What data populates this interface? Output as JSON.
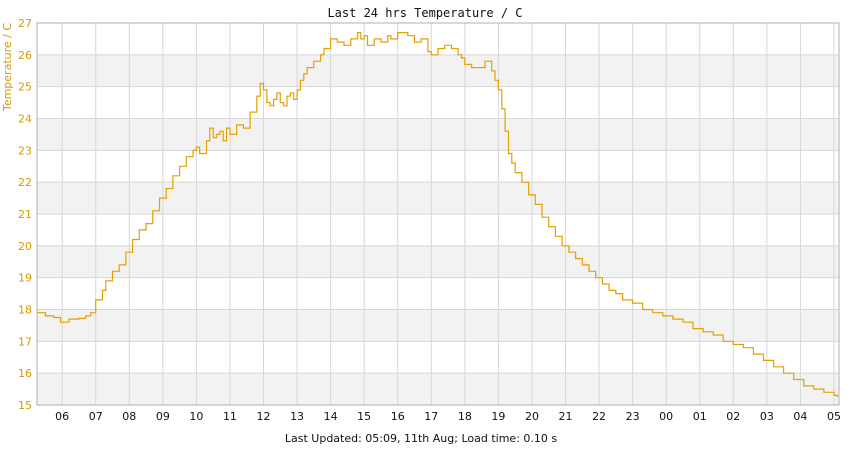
{
  "colors": {
    "series": "#e6a000",
    "y_tick_text": "#d89a00",
    "x_tick_text": "#111111",
    "band": "#f2f2f2",
    "grid": "#d7d7d7",
    "axis": "#b0b0b0"
  },
  "chart_data": {
    "type": "line",
    "title": "Last 24 hrs Temperature / C",
    "ylabel": "Temperature / C",
    "xlabel": "",
    "ylim": [
      15,
      27
    ],
    "yticks": [
      15,
      16,
      17,
      18,
      19,
      20,
      21,
      22,
      23,
      24,
      25,
      26,
      27
    ],
    "xlim": [
      5.25,
      29.15
    ],
    "xticks": [
      {
        "h": 6,
        "label": "06"
      },
      {
        "h": 7,
        "label": "07"
      },
      {
        "h": 8,
        "label": "08"
      },
      {
        "h": 9,
        "label": "09"
      },
      {
        "h": 10,
        "label": "10"
      },
      {
        "h": 11,
        "label": "11"
      },
      {
        "h": 12,
        "label": "12"
      },
      {
        "h": 13,
        "label": "13"
      },
      {
        "h": 14,
        "label": "14"
      },
      {
        "h": 15,
        "label": "15"
      },
      {
        "h": 16,
        "label": "16"
      },
      {
        "h": 17,
        "label": "17"
      },
      {
        "h": 18,
        "label": "18"
      },
      {
        "h": 19,
        "label": "19"
      },
      {
        "h": 20,
        "label": "20"
      },
      {
        "h": 21,
        "label": "21"
      },
      {
        "h": 22,
        "label": "22"
      },
      {
        "h": 23,
        "label": "23"
      },
      {
        "h": 24,
        "label": "00"
      },
      {
        "h": 25,
        "label": "01"
      },
      {
        "h": 26,
        "label": "02"
      },
      {
        "h": 27,
        "label": "03"
      },
      {
        "h": 28,
        "label": "04"
      },
      {
        "h": 29,
        "label": "05"
      }
    ],
    "grid": true,
    "legend": "none",
    "series": [
      {
        "x": [
          5.25,
          5.5,
          5.75,
          5.95,
          6.2,
          6.5,
          6.7,
          6.85,
          7.0,
          7.2,
          7.3,
          7.5,
          7.7,
          7.9,
          8.1,
          8.3,
          8.5,
          8.7,
          8.9,
          9.1,
          9.3,
          9.5,
          9.7,
          9.9,
          10.0,
          10.1,
          10.3,
          10.4,
          10.5,
          10.6,
          10.7,
          10.8,
          10.9,
          11.0,
          11.2,
          11.4,
          11.6,
          11.8,
          11.9,
          12.0,
          12.1,
          12.2,
          12.3,
          12.4,
          12.5,
          12.6,
          12.7,
          12.8,
          12.9,
          13.0,
          13.1,
          13.2,
          13.3,
          13.5,
          13.6,
          13.7,
          13.8,
          14.0,
          14.2,
          14.4,
          14.6,
          14.8,
          14.9,
          15.0,
          15.1,
          15.3,
          15.5,
          15.7,
          15.8,
          16.0,
          16.3,
          16.5,
          16.7,
          16.9,
          17.0,
          17.2,
          17.4,
          17.6,
          17.8,
          17.9,
          18.0,
          18.2,
          18.4,
          18.6,
          18.7,
          18.8,
          18.9,
          19.0,
          19.1,
          19.2,
          19.3,
          19.4,
          19.5,
          19.7,
          19.9,
          20.1,
          20.3,
          20.5,
          20.7,
          20.9,
          21.1,
          21.3,
          21.5,
          21.7,
          21.9,
          22.1,
          22.3,
          22.5,
          22.7,
          23.0,
          23.3,
          23.6,
          23.9,
          24.2,
          24.5,
          24.8,
          25.1,
          25.4,
          25.7,
          26.0,
          26.3,
          26.6,
          26.9,
          27.2,
          27.5,
          27.8,
          28.1,
          28.4,
          28.7,
          29.0,
          29.1
        ],
        "values": [
          17.9,
          17.8,
          17.75,
          17.6,
          17.7,
          17.72,
          17.8,
          17.9,
          18.3,
          18.6,
          18.9,
          19.2,
          19.4,
          19.8,
          20.2,
          20.5,
          20.7,
          21.1,
          21.5,
          21.8,
          22.2,
          22.5,
          22.8,
          23.0,
          23.1,
          22.9,
          23.3,
          23.7,
          23.4,
          23.5,
          23.6,
          23.3,
          23.7,
          23.5,
          23.8,
          23.7,
          24.2,
          24.7,
          25.1,
          24.9,
          24.5,
          24.4,
          24.6,
          24.8,
          24.5,
          24.4,
          24.7,
          24.8,
          24.6,
          24.9,
          25.2,
          25.4,
          25.6,
          25.8,
          25.8,
          26.0,
          26.2,
          26.5,
          26.4,
          26.3,
          26.5,
          26.7,
          26.5,
          26.6,
          26.3,
          26.5,
          26.4,
          26.6,
          26.5,
          26.7,
          26.6,
          26.4,
          26.5,
          26.1,
          26.0,
          26.2,
          26.3,
          26.2,
          26.0,
          25.9,
          25.7,
          25.6,
          25.6,
          25.8,
          25.8,
          25.5,
          25.2,
          24.9,
          24.3,
          23.6,
          22.9,
          22.6,
          22.3,
          22.0,
          21.6,
          21.3,
          20.9,
          20.6,
          20.3,
          20.0,
          19.8,
          19.6,
          19.4,
          19.2,
          19.0,
          18.8,
          18.6,
          18.5,
          18.3,
          18.2,
          18.0,
          17.9,
          17.8,
          17.7,
          17.6,
          17.4,
          17.3,
          17.2,
          17.0,
          16.9,
          16.8,
          16.6,
          16.4,
          16.2,
          16.0,
          15.8,
          15.6,
          15.5,
          15.4,
          15.3,
          15.25
        ]
      }
    ]
  },
  "footer": {
    "text": "Last Updated: 05:09, 11th Aug; Load time: 0.10 s"
  }
}
